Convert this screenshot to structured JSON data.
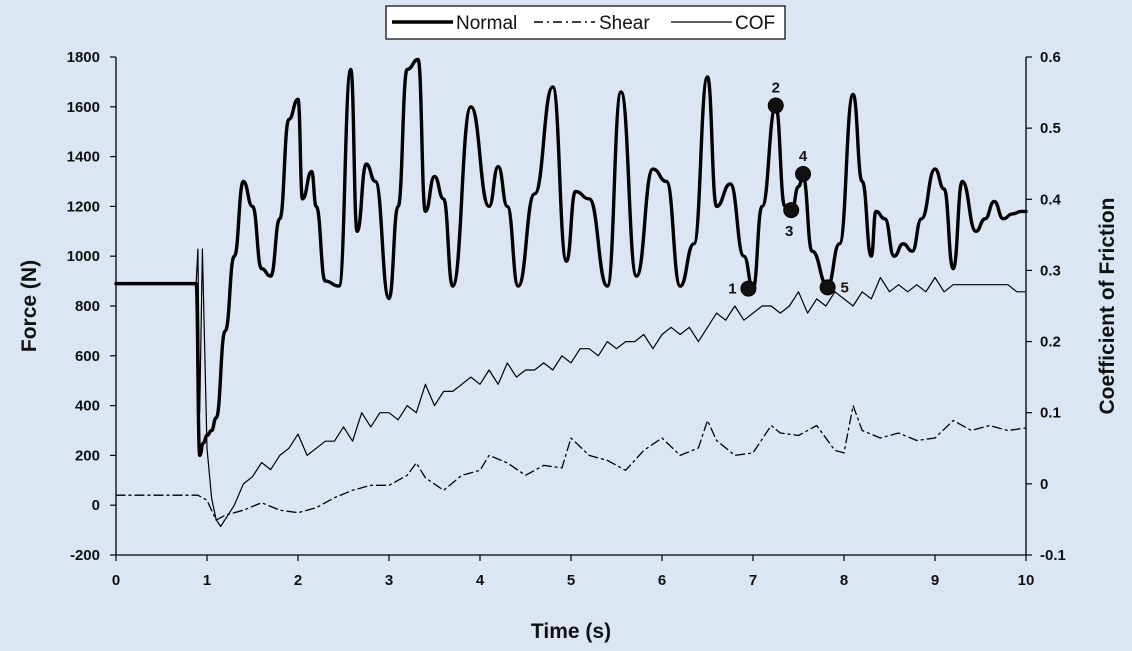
{
  "chart_data": {
    "type": "line",
    "xlabel": "Time (s)",
    "ylabel_left": "Force (N)",
    "ylabel_right": "Coefficient of Friction",
    "xlim": [
      0,
      10
    ],
    "ylim_left": [
      -200,
      1800
    ],
    "ylim_right": [
      -0.1,
      0.6
    ],
    "x_ticks": [
      "0",
      "1",
      "2",
      "3",
      "4",
      "5",
      "6",
      "7",
      "8",
      "9",
      "10"
    ],
    "y_left_ticks": [
      "-200",
      "0",
      "200",
      "400",
      "600",
      "800",
      "1000",
      "1200",
      "1400",
      "1600",
      "1800"
    ],
    "y_right_ticks": [
      "-0.1",
      "0",
      "0.1",
      "0.2",
      "0.3",
      "0.4",
      "0.5",
      "0.6"
    ],
    "legend": {
      "placement": "top-center",
      "entries": [
        "Normal",
        "Shear",
        "COF"
      ]
    },
    "grid": false,
    "series": [
      {
        "name": "Normal",
        "axis": "left",
        "style": "thick-solid",
        "x": [
          0,
          0.5,
          0.88,
          0.92,
          0.96,
          1.0,
          1.05,
          1.1,
          1.2,
          1.3,
          1.4,
          1.5,
          1.6,
          1.7,
          1.8,
          1.9,
          2.0,
          2.05,
          2.15,
          2.2,
          2.3,
          2.45,
          2.58,
          2.65,
          2.75,
          2.85,
          3.0,
          3.1,
          3.2,
          3.32,
          3.4,
          3.5,
          3.6,
          3.7,
          3.9,
          4.1,
          4.2,
          4.3,
          4.42,
          4.6,
          4.8,
          4.95,
          5.05,
          5.2,
          5.4,
          5.55,
          5.72,
          5.9,
          6.05,
          6.2,
          6.35,
          6.5,
          6.6,
          6.75,
          6.9,
          7.0,
          7.1,
          7.25,
          7.35,
          7.42,
          7.5,
          7.55,
          7.65,
          7.82,
          7.95,
          8.1,
          8.2,
          8.3,
          8.35,
          8.45,
          8.55,
          8.65,
          8.75,
          8.85,
          9.0,
          9.1,
          9.2,
          9.3,
          9.45,
          9.55,
          9.65,
          9.75,
          9.85,
          9.95,
          10.0
        ],
        "y": [
          890,
          890,
          890,
          200,
          250,
          280,
          300,
          350,
          700,
          1000,
          1300,
          1200,
          950,
          920,
          1150,
          1550,
          1630,
          1230,
          1340,
          1200,
          900,
          880,
          1750,
          1100,
          1370,
          1300,
          830,
          1200,
          1750,
          1790,
          1180,
          1320,
          1230,
          880,
          1600,
          1200,
          1360,
          1200,
          880,
          1250,
          1680,
          980,
          1260,
          1230,
          880,
          1660,
          920,
          1350,
          1300,
          880,
          1050,
          1720,
          1200,
          1290,
          1000,
          870,
          1200,
          1600,
          1200,
          1170,
          1280,
          1320,
          1020,
          880,
          1050,
          1650,
          1300,
          1000,
          1180,
          1150,
          1000,
          1050,
          1020,
          1150,
          1350,
          1270,
          950,
          1300,
          1100,
          1150,
          1220,
          1150,
          1170,
          1180,
          1180
        ]
      },
      {
        "name": "Shear",
        "axis": "left",
        "style": "dash-dot",
        "x": [
          0,
          0.5,
          0.9,
          1.0,
          1.1,
          1.2,
          1.4,
          1.6,
          1.8,
          2.0,
          2.2,
          2.4,
          2.6,
          2.8,
          3.0,
          3.2,
          3.3,
          3.4,
          3.6,
          3.8,
          4.0,
          4.1,
          4.3,
          4.5,
          4.7,
          4.9,
          5.0,
          5.2,
          5.4,
          5.6,
          5.8,
          6.0,
          6.2,
          6.4,
          6.5,
          6.6,
          6.8,
          7.0,
          7.2,
          7.3,
          7.5,
          7.7,
          7.9,
          8.0,
          8.1,
          8.2,
          8.4,
          8.6,
          8.8,
          9.0,
          9.2,
          9.4,
          9.6,
          9.8,
          10.0
        ],
        "y": [
          40,
          40,
          40,
          20,
          -60,
          -40,
          -20,
          10,
          -20,
          -30,
          -10,
          30,
          60,
          80,
          80,
          120,
          170,
          110,
          60,
          120,
          140,
          200,
          170,
          120,
          160,
          150,
          270,
          200,
          180,
          140,
          220,
          270,
          200,
          230,
          340,
          260,
          200,
          210,
          320,
          290,
          280,
          320,
          220,
          210,
          400,
          300,
          270,
          290,
          260,
          270,
          340,
          300,
          320,
          300,
          310
        ]
      },
      {
        "name": "COF",
        "axis": "right",
        "style": "thin-solid",
        "x": [
          0,
          0.5,
          0.88,
          0.9,
          0.92,
          0.95,
          1.0,
          1.05,
          1.1,
          1.15,
          1.2,
          1.3,
          1.4,
          1.5,
          1.6,
          1.7,
          1.8,
          1.9,
          2.0,
          2.1,
          2.2,
          2.3,
          2.4,
          2.5,
          2.6,
          2.7,
          2.8,
          2.9,
          3.0,
          3.1,
          3.2,
          3.3,
          3.4,
          3.5,
          3.6,
          3.7,
          3.8,
          3.9,
          4.0,
          4.1,
          4.2,
          4.3,
          4.4,
          4.5,
          4.6,
          4.7,
          4.8,
          4.9,
          5.0,
          5.1,
          5.2,
          5.3,
          5.4,
          5.5,
          5.6,
          5.7,
          5.8,
          5.9,
          6.0,
          6.1,
          6.2,
          6.3,
          6.4,
          6.5,
          6.6,
          6.7,
          6.8,
          6.9,
          7.0,
          7.1,
          7.2,
          7.3,
          7.4,
          7.5,
          7.6,
          7.7,
          7.8,
          7.9,
          8.0,
          8.1,
          8.2,
          8.3,
          8.4,
          8.5,
          8.6,
          8.7,
          8.8,
          8.9,
          9.0,
          9.1,
          9.2,
          9.3,
          9.4,
          9.5,
          9.6,
          9.7,
          9.8,
          9.9,
          10.0
        ],
        "y": [
          0.28,
          0.28,
          0.28,
          0.33,
          0.1,
          0.33,
          0.05,
          -0.02,
          -0.05,
          -0.06,
          -0.05,
          -0.03,
          0.0,
          0.01,
          0.03,
          0.02,
          0.04,
          0.05,
          0.07,
          0.04,
          0.05,
          0.06,
          0.06,
          0.08,
          0.06,
          0.1,
          0.08,
          0.1,
          0.1,
          0.09,
          0.11,
          0.1,
          0.14,
          0.11,
          0.13,
          0.13,
          0.14,
          0.15,
          0.14,
          0.16,
          0.14,
          0.17,
          0.15,
          0.16,
          0.16,
          0.17,
          0.16,
          0.18,
          0.17,
          0.19,
          0.19,
          0.18,
          0.2,
          0.19,
          0.2,
          0.2,
          0.21,
          0.19,
          0.21,
          0.22,
          0.21,
          0.22,
          0.2,
          0.22,
          0.24,
          0.23,
          0.25,
          0.23,
          0.24,
          0.25,
          0.25,
          0.24,
          0.25,
          0.27,
          0.24,
          0.26,
          0.25,
          0.27,
          0.26,
          0.25,
          0.27,
          0.26,
          0.29,
          0.27,
          0.28,
          0.27,
          0.28,
          0.27,
          0.29,
          0.27,
          0.28,
          0.28,
          0.28,
          0.28,
          0.28,
          0.28,
          0.28,
          0.27,
          0.27
        ]
      }
    ],
    "annotations": [
      {
        "label": "1",
        "x": 6.95,
        "y": 870,
        "label_side": "left"
      },
      {
        "label": "2",
        "x": 7.25,
        "y": 1605,
        "label_side": "top"
      },
      {
        "label": "3",
        "x": 7.42,
        "y": 1185,
        "label_side": "bottom"
      },
      {
        "label": "4",
        "x": 7.55,
        "y": 1330,
        "label_side": "top"
      },
      {
        "label": "5",
        "x": 7.82,
        "y": 875,
        "label_side": "right"
      }
    ]
  }
}
